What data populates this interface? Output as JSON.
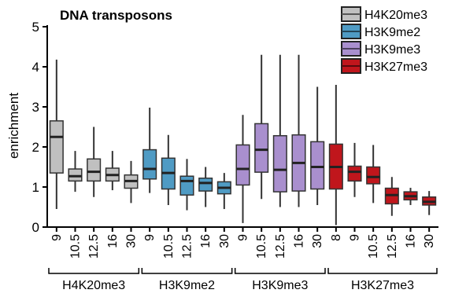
{
  "chart_data": {
    "type": "boxplot",
    "title": "DNA transposons",
    "ylabel": "enrichment",
    "ylim": [
      0,
      5
    ],
    "yticks": [
      0,
      1,
      2,
      3,
      4,
      5
    ],
    "groups": [
      {
        "name": "H4K20me3",
        "color": "#c0c0c0",
        "boxes": [
          {
            "label": "9",
            "min": 0.45,
            "q1": 1.35,
            "median": 2.25,
            "q3": 2.65,
            "max": 4.18
          },
          {
            "label": "10.5",
            "min": 0.88,
            "q1": 1.15,
            "median": 1.27,
            "q3": 1.45,
            "max": 1.9
          },
          {
            "label": "12.5",
            "min": 0.75,
            "q1": 1.15,
            "median": 1.38,
            "q3": 1.7,
            "max": 2.5
          },
          {
            "label": "16",
            "min": 0.92,
            "q1": 1.15,
            "median": 1.3,
            "q3": 1.47,
            "max": 1.9
          },
          {
            "label": "30",
            "min": 0.6,
            "q1": 0.97,
            "median": 1.15,
            "q3": 1.3,
            "max": 1.65
          }
        ]
      },
      {
        "name": "H3K9me2",
        "color": "#4f9bc4",
        "boxes": [
          {
            "label": "9",
            "min": 0.85,
            "q1": 1.2,
            "median": 1.45,
            "q3": 1.93,
            "max": 2.98
          },
          {
            "label": "10.5",
            "min": 0.55,
            "q1": 0.95,
            "median": 1.35,
            "q3": 1.72,
            "max": 2.3
          },
          {
            "label": "12.5",
            "min": 0.42,
            "q1": 0.8,
            "median": 1.15,
            "q3": 1.27,
            "max": 1.7
          },
          {
            "label": "16",
            "min": 0.5,
            "q1": 0.9,
            "median": 1.1,
            "q3": 1.22,
            "max": 1.5
          },
          {
            "label": "30",
            "min": 0.45,
            "q1": 0.83,
            "median": 0.98,
            "q3": 1.13,
            "max": 1.35
          }
        ]
      },
      {
        "name": "H3K9me3",
        "color": "#a98fce",
        "boxes": [
          {
            "label": "9",
            "min": 0.1,
            "q1": 1.05,
            "median": 1.45,
            "q3": 2.05,
            "max": 2.8
          },
          {
            "label": "10.5",
            "min": 0.7,
            "q1": 1.37,
            "median": 1.93,
            "q3": 2.58,
            "max": 4.3
          },
          {
            "label": "12.5",
            "min": 0.5,
            "q1": 0.88,
            "median": 1.43,
            "q3": 2.28,
            "max": 4.3
          },
          {
            "label": "16",
            "min": 0.5,
            "q1": 0.9,
            "median": 1.6,
            "q3": 2.3,
            "max": 4.3
          },
          {
            "label": "30",
            "min": 0.55,
            "q1": 0.95,
            "median": 1.5,
            "q3": 2.13,
            "max": 3.5
          }
        ]
      },
      {
        "name": "H3K27me3",
        "color": "#c0161c",
        "boxes": [
          {
            "label": "8",
            "min": 0.05,
            "q1": 0.95,
            "median": 1.5,
            "q3": 2.07,
            "max": 3.55
          },
          {
            "label": "9",
            "min": 0.75,
            "q1": 1.15,
            "median": 1.38,
            "q3": 1.52,
            "max": 2.1
          },
          {
            "label": "10.5",
            "min": 0.6,
            "q1": 1.08,
            "median": 1.25,
            "q3": 1.5,
            "max": 2.05
          },
          {
            "label": "12.5",
            "min": 0.28,
            "q1": 0.58,
            "median": 0.8,
            "q3": 0.97,
            "max": 1.25
          },
          {
            "label": "16",
            "min": 0.55,
            "q1": 0.68,
            "median": 0.77,
            "q3": 0.88,
            "max": 0.98
          },
          {
            "label": "30",
            "min": 0.3,
            "q1": 0.55,
            "median": 0.63,
            "q3": 0.75,
            "max": 0.9
          }
        ]
      }
    ],
    "legend": [
      {
        "label": "H4K20me3",
        "color": "#c0c0c0"
      },
      {
        "label": "H3K9me2",
        "color": "#4f9bc4"
      },
      {
        "label": "H3K9me3",
        "color": "#a98fce"
      },
      {
        "label": "H3K27me3",
        "color": "#c0161c"
      }
    ],
    "legend_position": "top-right",
    "grid": false
  }
}
